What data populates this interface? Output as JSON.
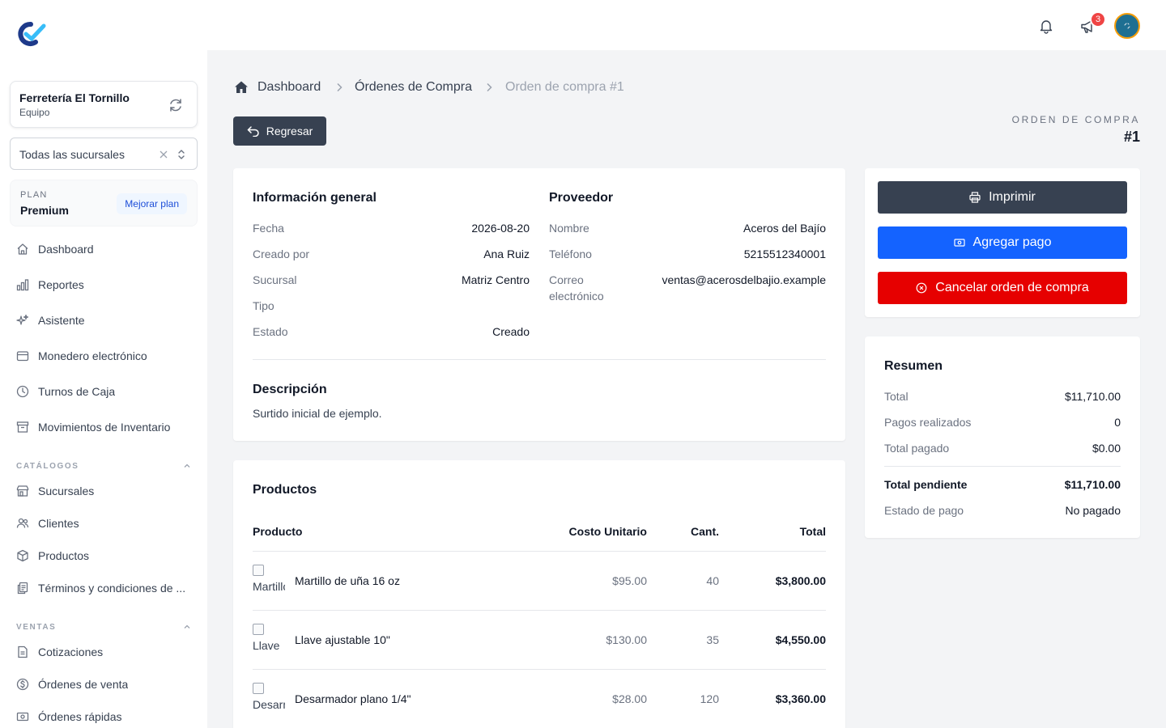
{
  "sidebar": {
    "logo_icon": "app-logo-icon",
    "team": {
      "name": "Ferretería El Tornillo",
      "subtitle": "Equipo"
    },
    "branch_select": {
      "value": "Todas las sucursales"
    },
    "plan": {
      "label": "PLAN",
      "name": "Premium",
      "upgrade_label": "Mejorar plan"
    },
    "items": [
      {
        "label": "Dashboard",
        "icon": "home-icon"
      },
      {
        "label": "Reportes",
        "icon": "bar-chart-icon"
      },
      {
        "label": "Asistente",
        "icon": "sparkles-icon"
      },
      {
        "label": "Monedero electrónico",
        "icon": "wallet-icon"
      },
      {
        "label": "Turnos de Caja",
        "icon": "clock-icon"
      },
      {
        "label": "Movimientos de Inventario",
        "icon": "archive-box-icon"
      }
    ],
    "sections": [
      {
        "title": "CATÁLOGOS",
        "items": [
          {
            "label": "Sucursales",
            "icon": "storefront-icon"
          },
          {
            "label": "Clientes",
            "icon": "users-icon"
          },
          {
            "label": "Productos",
            "icon": "cube-icon"
          },
          {
            "label": "Términos y condiciones de ...",
            "icon": "document-duplicate-icon"
          }
        ]
      },
      {
        "title": "VENTAS",
        "items": [
          {
            "label": "Cotizaciones",
            "icon": "document-icon"
          },
          {
            "label": "Órdenes de venta",
            "icon": "dollar-circle-icon"
          },
          {
            "label": "Órdenes rápidas",
            "icon": "banknotes-icon"
          }
        ]
      }
    ]
  },
  "topbar": {
    "notification_count": "3"
  },
  "breadcrumb": [
    {
      "label": "Dashboard"
    },
    {
      "label": "Órdenes de Compra"
    },
    {
      "label": "Orden de compra #1"
    }
  ],
  "header": {
    "back_label": "Regresar",
    "order_label": "ORDEN DE COMPRA",
    "order_number": "#1"
  },
  "general_info": {
    "title": "Información general",
    "rows": [
      {
        "label": "Fecha",
        "value": "2026-08-20"
      },
      {
        "label": "Creado por",
        "value": "Ana Ruiz"
      },
      {
        "label": "Sucursal",
        "value": "Matriz Centro"
      },
      {
        "label": "Tipo",
        "value": ""
      },
      {
        "label": "Estado",
        "value": "Creado"
      }
    ]
  },
  "supplier": {
    "title": "Proveedor",
    "rows": [
      {
        "label": "Nombre",
        "value": "Aceros del Bajío"
      },
      {
        "label": "Teléfono",
        "value": "5215512340001"
      },
      {
        "label": "Correo electrónico",
        "value": "ventas@acerosdelbajio.example"
      }
    ]
  },
  "description": {
    "title": "Descripción",
    "text": "Surtido inicial de ejemplo."
  },
  "actions": {
    "print_label": "Imprimir",
    "add_payment_label": "Agregar pago",
    "cancel_label": "Cancelar orden de compra",
    "colors": {
      "print": "#374151",
      "add_payment": "#1463ff",
      "cancel": "#e60000"
    }
  },
  "summary": {
    "title": "Resumen",
    "rows": [
      {
        "label": "Total",
        "value": "$11,710.00"
      },
      {
        "label": "Pagos realizados",
        "value": "0"
      },
      {
        "label": "Total pagado",
        "value": "$0.00"
      }
    ],
    "pending": {
      "label": "Total pendiente",
      "value": "$11,710.00"
    },
    "status": {
      "label": "Estado de pago",
      "value": "No pagado"
    }
  },
  "products": {
    "title": "Productos",
    "columns": {
      "product": "Producto",
      "unit_cost": "Costo Unitario",
      "qty": "Cant.",
      "total": "Total"
    },
    "rows": [
      {
        "img_alt": "Martillo",
        "name": "Martillo de uña 16 oz",
        "unit_cost": "$95.00",
        "qty": "40",
        "total": "$3,800.00"
      },
      {
        "img_alt": "Llave",
        "name": "Llave ajustable 10\"",
        "unit_cost": "$130.00",
        "qty": "35",
        "total": "$4,550.00"
      },
      {
        "img_alt": "Desarmador",
        "name": "Desarmador plano 1/4\"",
        "unit_cost": "$28.00",
        "qty": "120",
        "total": "$3,360.00"
      }
    ]
  }
}
